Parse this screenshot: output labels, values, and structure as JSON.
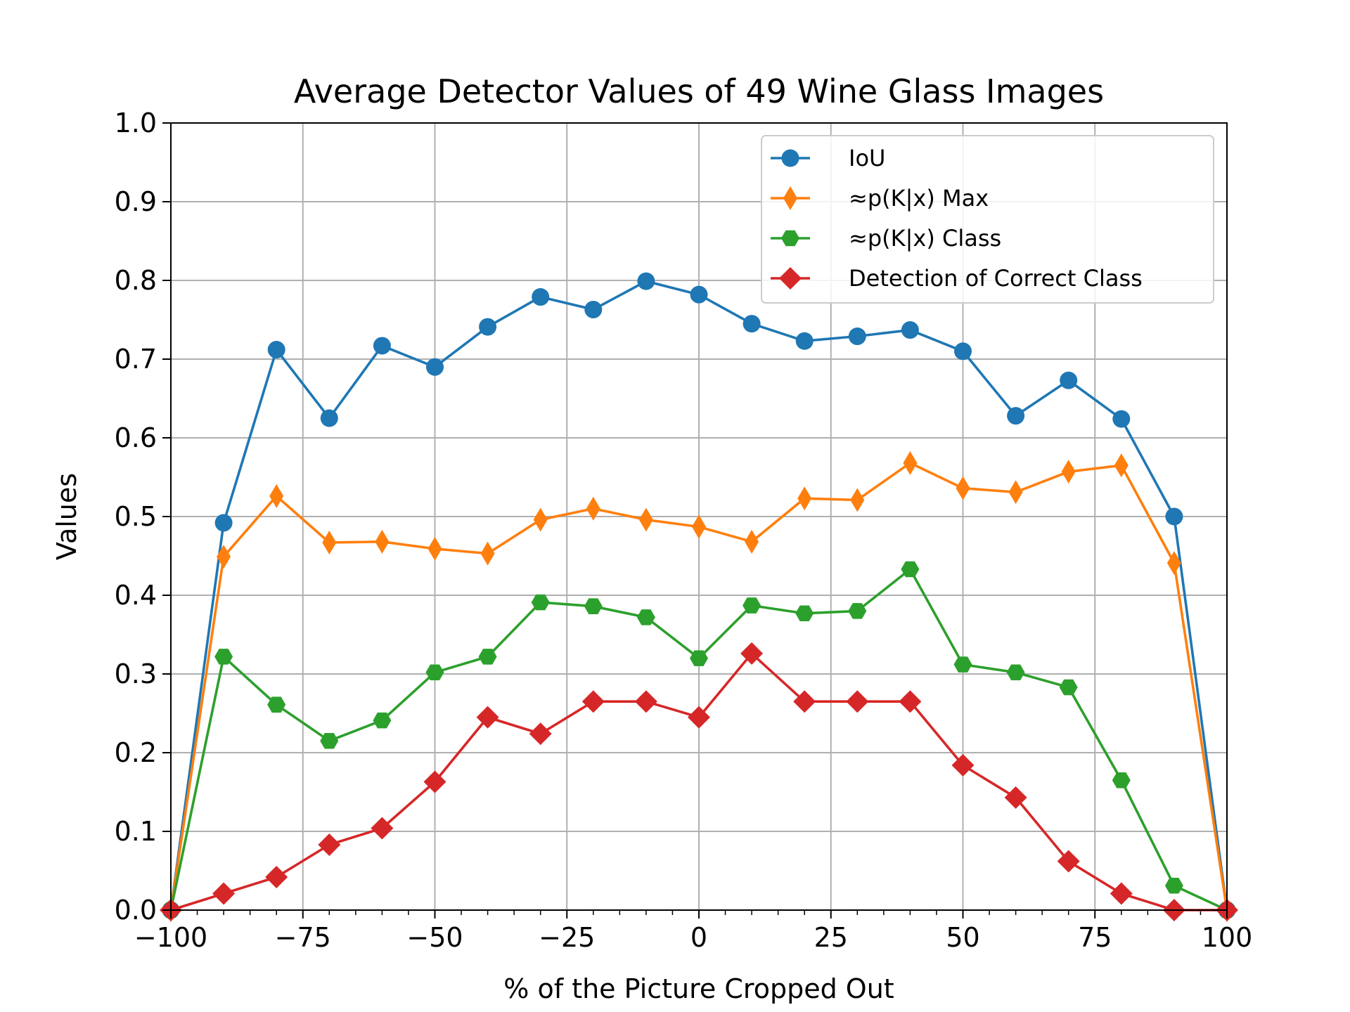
{
  "chart_data": {
    "type": "line",
    "title": "Average Detector Values of 49 Wine Glass Images",
    "xlabel": "% of the Picture Cropped Out",
    "ylabel": "Values",
    "xlim": [
      -100,
      100
    ],
    "ylim": [
      0,
      1
    ],
    "x_ticks": [
      -100,
      -75,
      -50,
      -25,
      0,
      25,
      50,
      75,
      100
    ],
    "x_tick_labels": [
      "−100",
      "−75",
      "−50",
      "−25",
      "0",
      "25",
      "50",
      "75",
      "100"
    ],
    "y_ticks": [
      0,
      0.1,
      0.2,
      0.3,
      0.4,
      0.5,
      0.6,
      0.7,
      0.8,
      0.9,
      1.0
    ],
    "y_tick_labels": [
      "0.0",
      "0.1",
      "0.2",
      "0.3",
      "0.4",
      "0.5",
      "0.6",
      "0.7",
      "0.8",
      "0.9",
      "1.0"
    ],
    "grid": true,
    "legend_position": "top-right",
    "x": [
      -100,
      -90,
      -80,
      -70,
      -60,
      -50,
      -40,
      -30,
      -20,
      -10,
      0,
      10,
      20,
      30,
      40,
      50,
      60,
      70,
      80,
      90,
      100
    ],
    "series": [
      {
        "name": "IoU",
        "color": "#1f77b4",
        "marker": "circle",
        "values": [
          0.0,
          0.492,
          0.712,
          0.625,
          0.717,
          0.69,
          0.741,
          0.779,
          0.763,
          0.799,
          0.782,
          0.745,
          0.723,
          0.729,
          0.737,
          0.71,
          0.628,
          0.673,
          0.624,
          0.5,
          0.0
        ]
      },
      {
        "name": "≈p(K|x) Max",
        "color": "#ff7f0e",
        "marker": "thin-diamond",
        "values": [
          0.0,
          0.449,
          0.526,
          0.467,
          0.468,
          0.459,
          0.453,
          0.496,
          0.51,
          0.496,
          0.487,
          0.468,
          0.523,
          0.521,
          0.568,
          0.536,
          0.531,
          0.557,
          0.565,
          0.441,
          0.0
        ]
      },
      {
        "name": "≈p(K|x) Class",
        "color": "#2ca02c",
        "marker": "hexagon",
        "values": [
          0.0,
          0.322,
          0.261,
          0.215,
          0.241,
          0.302,
          0.322,
          0.391,
          0.386,
          0.372,
          0.32,
          0.387,
          0.377,
          0.38,
          0.433,
          0.312,
          0.302,
          0.283,
          0.165,
          0.031,
          0.0
        ]
      },
      {
        "name": "Detection of Correct Class",
        "color": "#d62728",
        "marker": "diamond",
        "values": [
          0.0,
          0.021,
          0.042,
          0.083,
          0.104,
          0.163,
          0.245,
          0.224,
          0.265,
          0.265,
          0.245,
          0.326,
          0.265,
          0.265,
          0.265,
          0.184,
          0.143,
          0.062,
          0.021,
          0.0,
          0.0
        ]
      }
    ]
  }
}
